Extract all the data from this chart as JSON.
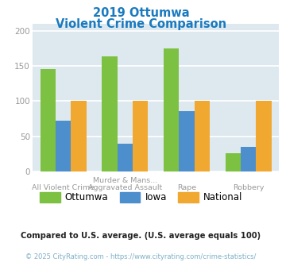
{
  "title_line1": "2019 Ottumwa",
  "title_line2": "Violent Crime Comparison",
  "title_color": "#1a7abf",
  "cat_labels_row1": [
    "",
    "Murder & Mans...",
    "",
    ""
  ],
  "cat_labels_row2": [
    "All Violent Crime",
    "Aggravated Assault",
    "Rape",
    "Robbery"
  ],
  "series": {
    "Ottumwa": [
      145,
      163,
      175,
      26
    ],
    "Iowa": [
      72,
      40,
      86,
      35
    ],
    "National": [
      100,
      100,
      100,
      100
    ]
  },
  "colors": {
    "Ottumwa": "#7dc142",
    "Iowa": "#4d8ecc",
    "National": "#f0a830"
  },
  "ylim": [
    0,
    210
  ],
  "yticks": [
    0,
    50,
    100,
    150,
    200
  ],
  "bar_width": 0.25,
  "plot_bg": "#dde8ef",
  "grid_color": "#ffffff",
  "footnote": "Compared to U.S. average. (U.S. average equals 100)",
  "footnote_color": "#222222",
  "copyright": "© 2025 CityRating.com - https://www.cityrating.com/crime-statistics/",
  "copyright_color": "#7dafc7"
}
